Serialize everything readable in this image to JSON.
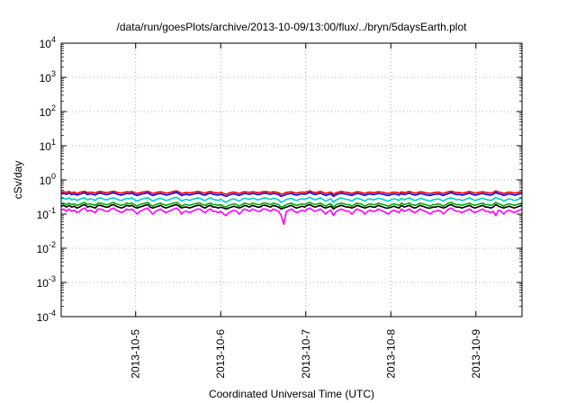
{
  "chart_data": {
    "type": "line",
    "title": "/data/run/goesPlots/archive/2013-10-09/13:00/flux/../bryn/5daysEarth.plot",
    "xlabel": "Coordinated Universal Time (UTC)",
    "ylabel": "cSv/day",
    "yscale": "log",
    "ylim": [
      0.0001,
      10000
    ],
    "x_range": [
      "2013-10-04T03:00",
      "2013-10-09T13:00"
    ],
    "x_ticks": [
      "2013-10-5",
      "2013-10-6",
      "2013-10-7",
      "2013-10-8",
      "2013-10-9"
    ],
    "y_ticks": [
      {
        "base": "10",
        "exp": "-4"
      },
      {
        "base": "10",
        "exp": "-3"
      },
      {
        "base": "10",
        "exp": "-2"
      },
      {
        "base": "10",
        "exp": "-1"
      },
      {
        "base": "10",
        "exp": "0"
      },
      {
        "base": "10",
        "exp": "1"
      },
      {
        "base": "10",
        "exp": "2"
      },
      {
        "base": "10",
        "exp": "3"
      },
      {
        "base": "10",
        "exp": "4"
      }
    ],
    "grid": true,
    "series": [
      {
        "color": "#ff0000",
        "values": [
          0.44,
          0.45,
          0.43,
          0.46,
          0.42,
          0.44,
          0.4,
          0.43,
          0.45,
          0.47,
          0.42,
          0.44,
          0.43,
          0.41,
          0.45,
          0.46,
          0.44,
          0.42,
          0.43,
          0.45,
          0.47,
          0.44,
          0.42,
          0.41,
          0.43,
          0.45,
          0.44,
          0.46,
          0.42,
          0.4,
          0.42,
          0.44,
          0.45,
          0.47,
          0.43,
          0.4,
          0.42,
          0.44,
          0.45,
          0.43,
          0.41,
          0.42,
          0.44,
          0.46,
          0.48,
          0.44,
          0.4,
          0.42,
          0.43,
          0.41,
          0.43,
          0.44,
          0.46,
          0.45,
          0.42,
          0.41,
          0.44,
          0.46,
          0.43,
          0.42,
          0.41,
          0.43,
          0.4,
          0.38,
          0.41,
          0.43,
          0.44,
          0.42,
          0.4,
          0.43,
          0.45,
          0.44,
          0.43,
          0.45,
          0.44,
          0.42,
          0.43,
          0.45,
          0.46,
          0.44,
          0.43,
          0.45,
          0.44,
          0.42,
          0.38,
          0.4,
          0.43,
          0.44,
          0.45,
          0.42,
          0.41,
          0.43,
          0.44,
          0.43,
          0.45,
          0.48,
          0.44,
          0.42,
          0.44,
          0.46,
          0.43,
          0.4,
          0.42,
          0.44,
          0.38,
          0.42,
          0.44,
          0.46,
          0.44,
          0.43,
          0.42,
          0.4,
          0.43,
          0.45,
          0.44,
          0.42,
          0.4,
          0.43,
          0.44,
          0.42,
          0.43,
          0.45,
          0.44,
          0.43,
          0.41,
          0.4,
          0.42,
          0.44,
          0.43,
          0.41,
          0.45,
          0.42,
          0.44,
          0.46,
          0.43,
          0.41,
          0.42,
          0.45,
          0.44,
          0.42,
          0.41,
          0.4,
          0.42,
          0.43,
          0.44,
          0.42,
          0.4,
          0.43,
          0.45,
          0.47,
          0.44,
          0.42,
          0.43,
          0.41,
          0.42,
          0.44,
          0.46,
          0.43,
          0.41,
          0.42,
          0.44,
          0.45,
          0.43,
          0.42,
          0.41,
          0.43,
          0.48,
          0.44,
          0.43,
          0.4,
          0.42,
          0.44,
          0.43,
          0.41,
          0.42,
          0.44,
          0.45
        ]
      },
      {
        "color": "#0000ff",
        "values": [
          0.39,
          0.4,
          0.38,
          0.41,
          0.37,
          0.39,
          0.36,
          0.38,
          0.4,
          0.42,
          0.37,
          0.39,
          0.38,
          0.36,
          0.4,
          0.41,
          0.39,
          0.37,
          0.38,
          0.4,
          0.42,
          0.39,
          0.37,
          0.36,
          0.38,
          0.4,
          0.39,
          0.41,
          0.37,
          0.35,
          0.37,
          0.39,
          0.4,
          0.42,
          0.38,
          0.35,
          0.37,
          0.39,
          0.4,
          0.38,
          0.36,
          0.37,
          0.39,
          0.41,
          0.43,
          0.39,
          0.35,
          0.37,
          0.38,
          0.36,
          0.38,
          0.39,
          0.41,
          0.4,
          0.37,
          0.36,
          0.39,
          0.41,
          0.38,
          0.37,
          0.36,
          0.38,
          0.35,
          0.33,
          0.36,
          0.38,
          0.39,
          0.37,
          0.35,
          0.38,
          0.4,
          0.39,
          0.38,
          0.4,
          0.39,
          0.37,
          0.38,
          0.4,
          0.41,
          0.39,
          0.38,
          0.4,
          0.39,
          0.37,
          0.33,
          0.35,
          0.38,
          0.39,
          0.4,
          0.37,
          0.36,
          0.38,
          0.39,
          0.38,
          0.4,
          0.43,
          0.39,
          0.37,
          0.39,
          0.41,
          0.38,
          0.35,
          0.37,
          0.39,
          0.33,
          0.37,
          0.39,
          0.41,
          0.39,
          0.38,
          0.37,
          0.35,
          0.38,
          0.4,
          0.39,
          0.37,
          0.35,
          0.38,
          0.39,
          0.37,
          0.38,
          0.4,
          0.39,
          0.38,
          0.36,
          0.35,
          0.37,
          0.39,
          0.38,
          0.36,
          0.4,
          0.37,
          0.39,
          0.41,
          0.38,
          0.36,
          0.37,
          0.4,
          0.39,
          0.37,
          0.36,
          0.35,
          0.37,
          0.38,
          0.39,
          0.37,
          0.35,
          0.38,
          0.4,
          0.42,
          0.39,
          0.37,
          0.38,
          0.36,
          0.37,
          0.39,
          0.41,
          0.38,
          0.36,
          0.37,
          0.39,
          0.4,
          0.38,
          0.37,
          0.36,
          0.38,
          0.43,
          0.39,
          0.38,
          0.35,
          0.37,
          0.39,
          0.38,
          0.36,
          0.37,
          0.39,
          0.4
        ]
      },
      {
        "color": "#00cccc",
        "values": [
          0.28,
          0.29,
          0.27,
          0.3,
          0.26,
          0.28,
          0.25,
          0.27,
          0.29,
          0.3,
          0.26,
          0.28,
          0.27,
          0.25,
          0.29,
          0.3,
          0.28,
          0.26,
          0.27,
          0.29,
          0.3,
          0.28,
          0.26,
          0.25,
          0.27,
          0.29,
          0.28,
          0.3,
          0.26,
          0.24,
          0.26,
          0.28,
          0.29,
          0.3,
          0.27,
          0.24,
          0.26,
          0.28,
          0.29,
          0.27,
          0.25,
          0.26,
          0.28,
          0.3,
          0.31,
          0.28,
          0.24,
          0.26,
          0.27,
          0.25,
          0.27,
          0.28,
          0.3,
          0.29,
          0.26,
          0.25,
          0.28,
          0.3,
          0.27,
          0.26,
          0.25,
          0.27,
          0.24,
          0.22,
          0.25,
          0.27,
          0.28,
          0.26,
          0.24,
          0.27,
          0.29,
          0.28,
          0.27,
          0.29,
          0.28,
          0.26,
          0.27,
          0.29,
          0.3,
          0.28,
          0.27,
          0.29,
          0.28,
          0.26,
          0.22,
          0.24,
          0.27,
          0.28,
          0.29,
          0.26,
          0.25,
          0.27,
          0.28,
          0.27,
          0.29,
          0.31,
          0.28,
          0.26,
          0.28,
          0.3,
          0.27,
          0.24,
          0.26,
          0.28,
          0.22,
          0.26,
          0.28,
          0.3,
          0.28,
          0.27,
          0.26,
          0.24,
          0.27,
          0.29,
          0.28,
          0.26,
          0.24,
          0.27,
          0.28,
          0.26,
          0.27,
          0.29,
          0.28,
          0.27,
          0.25,
          0.24,
          0.26,
          0.28,
          0.27,
          0.25,
          0.29,
          0.26,
          0.28,
          0.3,
          0.27,
          0.25,
          0.26,
          0.29,
          0.28,
          0.26,
          0.25,
          0.24,
          0.26,
          0.27,
          0.28,
          0.26,
          0.24,
          0.27,
          0.29,
          0.3,
          0.28,
          0.26,
          0.27,
          0.25,
          0.26,
          0.28,
          0.3,
          0.27,
          0.25,
          0.26,
          0.28,
          0.29,
          0.27,
          0.26,
          0.25,
          0.27,
          0.31,
          0.28,
          0.27,
          0.24,
          0.26,
          0.28,
          0.27,
          0.25,
          0.26,
          0.28,
          0.29
        ]
      },
      {
        "color": "#00aa00",
        "values": [
          0.2,
          0.21,
          0.19,
          0.21,
          0.19,
          0.2,
          0.18,
          0.19,
          0.21,
          0.22,
          0.19,
          0.2,
          0.19,
          0.18,
          0.21,
          0.21,
          0.2,
          0.19,
          0.19,
          0.21,
          0.22,
          0.2,
          0.19,
          0.18,
          0.19,
          0.21,
          0.2,
          0.21,
          0.19,
          0.17,
          0.19,
          0.2,
          0.21,
          0.22,
          0.19,
          0.17,
          0.19,
          0.2,
          0.21,
          0.19,
          0.18,
          0.19,
          0.2,
          0.21,
          0.22,
          0.2,
          0.17,
          0.19,
          0.19,
          0.18,
          0.19,
          0.2,
          0.21,
          0.21,
          0.19,
          0.18,
          0.2,
          0.21,
          0.19,
          0.19,
          0.18,
          0.19,
          0.17,
          0.16,
          0.18,
          0.19,
          0.2,
          0.19,
          0.17,
          0.19,
          0.21,
          0.2,
          0.19,
          0.21,
          0.2,
          0.19,
          0.19,
          0.21,
          0.21,
          0.2,
          0.19,
          0.21,
          0.2,
          0.19,
          0.16,
          0.17,
          0.19,
          0.2,
          0.21,
          0.19,
          0.18,
          0.19,
          0.2,
          0.19,
          0.21,
          0.22,
          0.2,
          0.19,
          0.2,
          0.21,
          0.19,
          0.17,
          0.19,
          0.2,
          0.16,
          0.19,
          0.2,
          0.21,
          0.2,
          0.19,
          0.19,
          0.17,
          0.19,
          0.21,
          0.2,
          0.19,
          0.17,
          0.19,
          0.2,
          0.19,
          0.19,
          0.21,
          0.2,
          0.19,
          0.18,
          0.17,
          0.19,
          0.2,
          0.19,
          0.18,
          0.21,
          0.19,
          0.2,
          0.21,
          0.19,
          0.18,
          0.19,
          0.21,
          0.2,
          0.19,
          0.18,
          0.17,
          0.19,
          0.19,
          0.2,
          0.19,
          0.17,
          0.19,
          0.21,
          0.22,
          0.2,
          0.19,
          0.19,
          0.18,
          0.19,
          0.2,
          0.21,
          0.19,
          0.18,
          0.19,
          0.2,
          0.21,
          0.19,
          0.19,
          0.18,
          0.19,
          0.22,
          0.2,
          0.19,
          0.17,
          0.19,
          0.2,
          0.19,
          0.18,
          0.19,
          0.2,
          0.21
        ]
      },
      {
        "color": "#000000",
        "values": [
          0.17,
          0.18,
          0.16,
          0.18,
          0.16,
          0.17,
          0.15,
          0.16,
          0.18,
          0.19,
          0.16,
          0.17,
          0.16,
          0.15,
          0.18,
          0.18,
          0.17,
          0.16,
          0.16,
          0.18,
          0.19,
          0.17,
          0.16,
          0.15,
          0.16,
          0.18,
          0.17,
          0.18,
          0.16,
          0.15,
          0.16,
          0.17,
          0.18,
          0.19,
          0.16,
          0.15,
          0.16,
          0.17,
          0.18,
          0.16,
          0.15,
          0.16,
          0.17,
          0.18,
          0.19,
          0.17,
          0.15,
          0.16,
          0.16,
          0.15,
          0.16,
          0.17,
          0.18,
          0.18,
          0.16,
          0.15,
          0.17,
          0.18,
          0.16,
          0.16,
          0.15,
          0.16,
          0.15,
          0.14,
          0.15,
          0.16,
          0.17,
          0.16,
          0.15,
          0.16,
          0.18,
          0.17,
          0.16,
          0.18,
          0.17,
          0.16,
          0.16,
          0.18,
          0.18,
          0.17,
          0.16,
          0.18,
          0.17,
          0.16,
          0.14,
          0.15,
          0.16,
          0.17,
          0.18,
          0.16,
          0.15,
          0.16,
          0.17,
          0.16,
          0.18,
          0.19,
          0.17,
          0.16,
          0.17,
          0.18,
          0.16,
          0.15,
          0.16,
          0.17,
          0.14,
          0.16,
          0.17,
          0.18,
          0.17,
          0.16,
          0.16,
          0.15,
          0.16,
          0.18,
          0.17,
          0.16,
          0.15,
          0.16,
          0.17,
          0.16,
          0.16,
          0.18,
          0.17,
          0.16,
          0.15,
          0.15,
          0.16,
          0.17,
          0.16,
          0.15,
          0.18,
          0.16,
          0.17,
          0.18,
          0.16,
          0.15,
          0.16,
          0.18,
          0.17,
          0.16,
          0.15,
          0.15,
          0.16,
          0.16,
          0.17,
          0.16,
          0.15,
          0.16,
          0.18,
          0.19,
          0.17,
          0.16,
          0.16,
          0.15,
          0.16,
          0.17,
          0.18,
          0.16,
          0.15,
          0.16,
          0.17,
          0.18,
          0.16,
          0.16,
          0.15,
          0.16,
          0.19,
          0.17,
          0.16,
          0.15,
          0.16,
          0.17,
          0.16,
          0.15,
          0.16,
          0.17,
          0.18
        ]
      },
      {
        "color": "#ff00ff",
        "values": [
          0.13,
          0.14,
          0.12,
          0.14,
          0.12,
          0.13,
          0.11,
          0.12,
          0.14,
          0.15,
          0.12,
          0.13,
          0.12,
          0.11,
          0.14,
          0.14,
          0.13,
          0.12,
          0.12,
          0.14,
          0.15,
          0.13,
          0.12,
          0.11,
          0.12,
          0.14,
          0.13,
          0.14,
          0.12,
          0.1,
          0.12,
          0.13,
          0.14,
          0.15,
          0.12,
          0.1,
          0.12,
          0.13,
          0.14,
          0.12,
          0.11,
          0.12,
          0.13,
          0.14,
          0.15,
          0.13,
          0.1,
          0.12,
          0.12,
          0.11,
          0.12,
          0.13,
          0.14,
          0.14,
          0.12,
          0.11,
          0.13,
          0.14,
          0.12,
          0.12,
          0.11,
          0.12,
          0.1,
          0.09,
          0.11,
          0.12,
          0.13,
          0.12,
          0.1,
          0.12,
          0.14,
          0.13,
          0.12,
          0.14,
          0.13,
          0.12,
          0.12,
          0.14,
          0.14,
          0.13,
          0.12,
          0.14,
          0.13,
          0.12,
          0.09,
          0.05,
          0.12,
          0.13,
          0.14,
          0.12,
          0.11,
          0.12,
          0.13,
          0.12,
          0.14,
          0.15,
          0.13,
          0.12,
          0.13,
          0.14,
          0.12,
          0.1,
          0.12,
          0.13,
          0.09,
          0.12,
          0.13,
          0.14,
          0.13,
          0.12,
          0.12,
          0.1,
          0.12,
          0.14,
          0.13,
          0.12,
          0.1,
          0.12,
          0.13,
          0.12,
          0.12,
          0.14,
          0.13,
          0.12,
          0.11,
          0.1,
          0.12,
          0.13,
          0.12,
          0.11,
          0.14,
          0.12,
          0.13,
          0.14,
          0.12,
          0.11,
          0.12,
          0.14,
          0.13,
          0.12,
          0.11,
          0.1,
          0.12,
          0.12,
          0.13,
          0.12,
          0.1,
          0.12,
          0.14,
          0.15,
          0.13,
          0.12,
          0.12,
          0.11,
          0.12,
          0.13,
          0.14,
          0.12,
          0.11,
          0.12,
          0.13,
          0.14,
          0.12,
          0.12,
          0.11,
          0.12,
          0.09,
          0.13,
          0.12,
          0.1,
          0.12,
          0.13,
          0.12,
          0.11,
          0.12,
          0.13,
          0.14
        ]
      }
    ]
  }
}
